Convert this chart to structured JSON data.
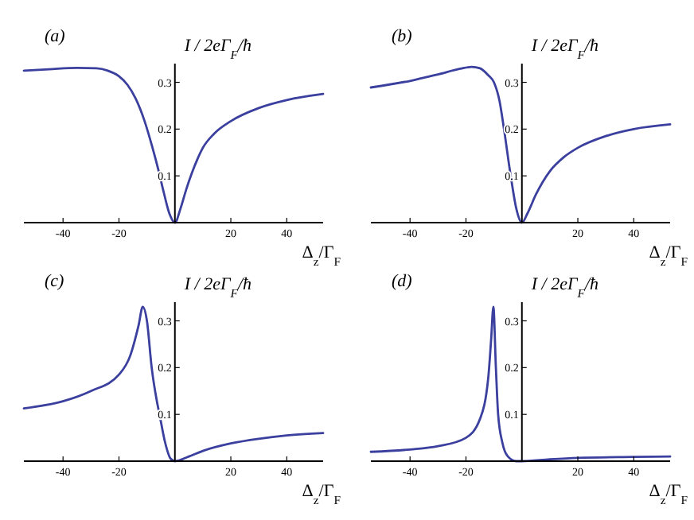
{
  "chart_data": [
    {
      "type": "line",
      "title": "(a)",
      "xlabel": "Δ$_{z}$/Γ$_{F}$",
      "ylabel": "I / 2eΓ$_{F}$/ħ",
      "xlim": [
        -54,
        53
      ],
      "ylim": [
        0,
        0.34
      ],
      "xticks": [
        -40,
        -20,
        20,
        40
      ],
      "yticks": [
        0.1,
        0.2,
        0.3
      ],
      "series": [
        {
          "color": "#3b3f9e",
          "x": [
            -54,
            -45,
            -35,
            -28,
            -24,
            -20,
            -17,
            -14,
            -11,
            -8,
            -6,
            -4,
            -2,
            0,
            2,
            4,
            6,
            8,
            10,
            14,
            20,
            30,
            40,
            53
          ],
          "values": [
            0.325,
            0.328,
            0.331,
            0.33,
            0.325,
            0.313,
            0.295,
            0.265,
            0.22,
            0.16,
            0.115,
            0.065,
            0.02,
            0,
            0.03,
            0.07,
            0.105,
            0.135,
            0.16,
            0.19,
            0.217,
            0.245,
            0.262,
            0.275
          ]
        }
      ]
    },
    {
      "type": "line",
      "title": "(b)",
      "xlabel": "Δ$_{z}$/Γ$_{F}$",
      "ylabel": "I / 2eΓ$_{F}$/ħ",
      "xlim": [
        -54,
        53
      ],
      "ylim": [
        0,
        0.34
      ],
      "xticks": [
        -40,
        -20,
        20,
        40
      ],
      "yticks": [
        0.1,
        0.2,
        0.3
      ],
      "series": [
        {
          "color": "#3b3f9e",
          "x": [
            -54,
            -40,
            -30,
            -22,
            -18,
            -15,
            -12,
            -10,
            -8,
            -6.4,
            -4,
            -2,
            0,
            2,
            5,
            10,
            15,
            20,
            30,
            40,
            53
          ],
          "values": [
            0.289,
            0.303,
            0.317,
            0.329,
            0.333,
            0.33,
            0.315,
            0.3,
            0.26,
            0.2,
            0.1,
            0.03,
            0,
            0.02,
            0.06,
            0.11,
            0.14,
            0.16,
            0.185,
            0.2,
            0.21
          ]
        }
      ]
    },
    {
      "type": "line",
      "title": "(c)",
      "xlabel": "Δ$_{z}$/Γ$_{F}$",
      "ylabel": "I / 2eΓ$_{F}$/ħ",
      "xlim": [
        -54,
        53
      ],
      "ylim": [
        0,
        0.34
      ],
      "xticks": [
        -40,
        -20,
        20,
        40
      ],
      "yticks": [
        0.1,
        0.2,
        0.3
      ],
      "series": [
        {
          "color": "#3b3f9e",
          "x": [
            -54,
            -40,
            -30,
            -20,
            -16,
            -13,
            -11.5,
            -10,
            -8.3,
            -6.5,
            -5.5,
            -3.5,
            -1.5,
            0,
            5,
            10,
            20,
            30,
            40,
            53
          ],
          "values": [
            0.113,
            0.128,
            0.15,
            0.185,
            0.225,
            0.29,
            0.33,
            0.3,
            0.2,
            0.13,
            0.1,
            0.04,
            0.005,
            0,
            0.01,
            0.022,
            0.038,
            0.048,
            0.055,
            0.06
          ]
        }
      ]
    },
    {
      "type": "line",
      "title": "(d)",
      "xlabel": "Δ$_{z}$/Γ$_{F}$",
      "ylabel": "I / 2eΓ$_{F}$/ħ",
      "xlim": [
        -54,
        53
      ],
      "ylim": [
        0,
        0.34
      ],
      "xticks": [
        -40,
        -20,
        20,
        40
      ],
      "yticks": [
        0.1,
        0.2,
        0.3
      ],
      "series": [
        {
          "color": "#3b3f9e",
          "x": [
            -54,
            -40,
            -30,
            -20,
            -15,
            -12,
            -11,
            -10.2,
            -9.3,
            -8.5,
            -7,
            -5,
            -2,
            0,
            10,
            20,
            40,
            53
          ],
          "values": [
            0.02,
            0.025,
            0.032,
            0.05,
            0.09,
            0.18,
            0.26,
            0.33,
            0.2,
            0.1,
            0.04,
            0.01,
            0,
            0,
            0.004,
            0.007,
            0.009,
            0.01
          ]
        }
      ]
    }
  ]
}
